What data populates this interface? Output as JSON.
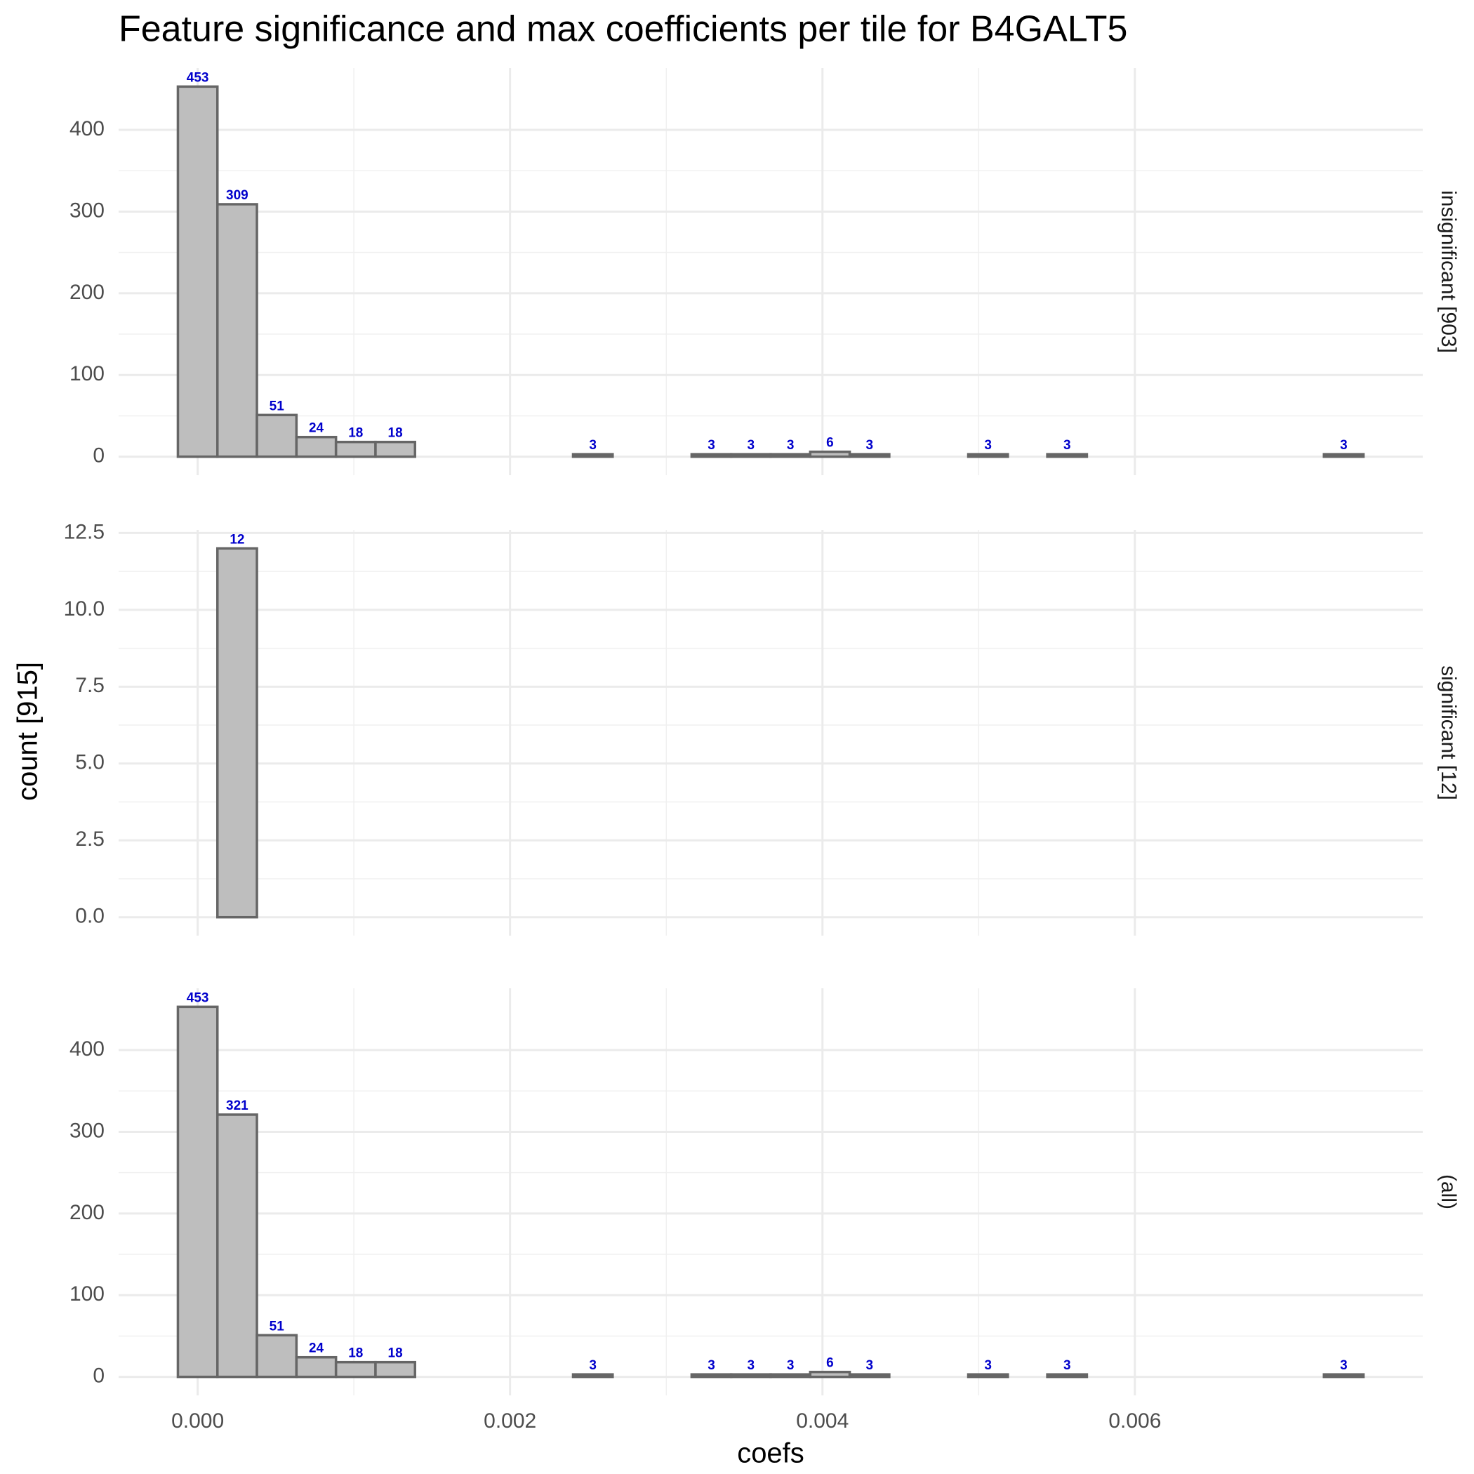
{
  "chart_data": {
    "type": "histogram",
    "title": "Feature significance and max coefficients per tile for B4GALT5",
    "x_label": "coefs",
    "y_label": "count [915]",
    "color": "#bebebe",
    "edgecolor": "#666666",
    "label_color": "#0000cc",
    "grid": true,
    "bins": [
      -0.0001265,
      0.0001265,
      0.0003795,
      0.0006325,
      0.0008855,
      0.0011385,
      0.0013915,
      0.0016445,
      0.0018975,
      0.0021505,
      0.0024035,
      0.0026565,
      0.0029095,
      0.0031625,
      0.0034155,
      0.0036685,
      0.0039215,
      0.0041745,
      0.0044275,
      0.0046805,
      0.0049335,
      0.0051865,
      0.0054395,
      0.0056925,
      0.0059455,
      0.0061985,
      0.0064515,
      0.0067045,
      0.0069575,
      0.0072105,
      0.0074635
    ],
    "xlim": [
      -0.000506,
      0.007843
    ],
    "xticks": [
      {
        "value": 0,
        "label": "0.000"
      },
      0.002,
      0.004,
      0.006
    ],
    "panels": [
      {
        "name": "insignificant [903]",
        "ylim": [
          -22.65,
          475.65
        ],
        "yticks": [
          0,
          100,
          200,
          300,
          400
        ],
        "values": [
          453,
          309,
          51,
          24,
          18,
          18,
          0,
          0,
          0,
          0,
          3,
          0,
          0,
          3,
          3,
          3,
          6,
          3,
          0,
          0,
          3,
          0,
          3,
          0,
          0,
          0,
          0,
          0,
          0,
          3
        ]
      },
      {
        "name": "significant [12]",
        "ylim": [
          -0.6,
          12.6
        ],
        "yticks": [
          {
            "value": 0,
            "label": "0.0"
          },
          2.5,
          {
            "value": 5,
            "label": "5.0"
          },
          7.5,
          {
            "value": 10,
            "label": "10.0"
          },
          12.5
        ],
        "values": [
          0,
          12,
          0,
          0,
          0,
          0,
          0,
          0,
          0,
          0,
          0,
          0,
          0,
          0,
          0,
          0,
          0,
          0,
          0,
          0,
          0,
          0,
          0,
          0,
          0,
          0,
          0,
          0,
          0,
          0
        ]
      },
      {
        "name": "(all)",
        "ylim": [
          -22.65,
          475.65
        ],
        "yticks": [
          0,
          100,
          200,
          300,
          400
        ],
        "values": [
          453,
          321,
          51,
          24,
          18,
          18,
          0,
          0,
          0,
          0,
          3,
          0,
          0,
          3,
          3,
          3,
          6,
          3,
          0,
          0,
          3,
          0,
          3,
          0,
          0,
          0,
          0,
          0,
          0,
          3
        ]
      }
    ]
  }
}
